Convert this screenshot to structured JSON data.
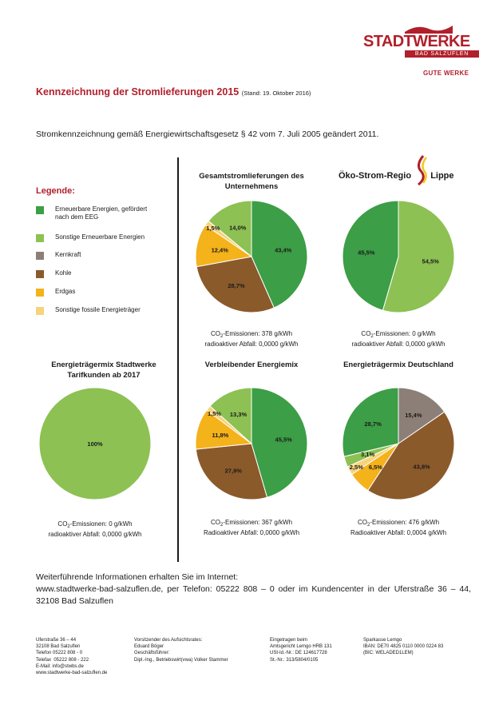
{
  "logo": {
    "name": "STADTWERKE",
    "sub": "BAD SALZUFLEN",
    "slogan": "GUTE WERKE"
  },
  "title": "Kennzeichnung der Stromlieferungen 2015",
  "title_stand": "(Stand: 19. Oktober 2016)",
  "intro": "Stromkennzeichnung gemäß Energiewirtschaftsgesetz § 42 vom 7. Juli 2005 geändert 2011.",
  "legend": {
    "title": "Legende:",
    "items": [
      {
        "label": "Erneuerbare Energien, gefördert nach dem EEG",
        "color": "#3c9e46"
      },
      {
        "label": "Sonstige Erneuerbare Energien",
        "color": "#8dc153"
      },
      {
        "label": "Kernkraft",
        "color": "#8b7f77"
      },
      {
        "label": "Kohle",
        "color": "#8b5a2b"
      },
      {
        "label": "Erdgas",
        "color": "#f4b21b"
      },
      {
        "label": "Sonstige fossile Energieträger",
        "color": "#f7d37b"
      }
    ]
  },
  "oeko_brand": {
    "text": "Öko-Strom-Regio",
    "accent": "Lippe"
  },
  "chart_data": [
    {
      "type": "pie",
      "title": "Gesamtstromlieferungen des Unternehmens",
      "categories": [
        "Erneuerbare Energien, gefördert nach dem EEG",
        "Kohle",
        "Erdgas",
        "Sonstige fossile Energieträger",
        "Sonstige Erneuerbare Energien"
      ],
      "values": [
        43.4,
        28.7,
        12.4,
        1.5,
        14.0
      ],
      "labels": [
        "43,4%",
        "28,7%",
        "12,4%",
        "1,5%",
        "14,0%"
      ],
      "colors": [
        "#3c9e46",
        "#8b5a2b",
        "#f4b21b",
        "#f7d37b",
        "#8dc153"
      ],
      "caption_co2": "378 g/kWh",
      "caption_waste": "0,0000 g/kWh"
    },
    {
      "type": "pie",
      "title": "",
      "categories": [
        "Sonstige Erneuerbare Energien",
        "Erneuerbare Energien, gefördert nach dem EEG"
      ],
      "values": [
        54.5,
        45.5
      ],
      "labels": [
        "54,5%",
        "45,5%"
      ],
      "colors": [
        "#8dc153",
        "#3c9e46"
      ],
      "caption_co2": "0 g/kWh",
      "caption_waste": "0,0000 g/kWh"
    },
    {
      "type": "pie",
      "title": "Energieträgermix Stadtwerke Tarifkunden ab 2017",
      "categories": [
        "Sonstige Erneuerbare Energien"
      ],
      "values": [
        100
      ],
      "labels": [
        "100%"
      ],
      "colors": [
        "#8dc153"
      ],
      "caption_co2": "0 g/kWh",
      "caption_waste": "0,0000 g/kWh"
    },
    {
      "type": "pie",
      "title": "Verbleibender Energiemix",
      "categories": [
        "Erneuerbare Energien, gefördert nach dem EEG",
        "Kohle",
        "Erdgas",
        "Sonstige fossile Energieträger",
        "Sonstige Erneuerbare Energien"
      ],
      "values": [
        45.5,
        27.9,
        11.8,
        1.5,
        13.3
      ],
      "labels": [
        "45,5%",
        "27,9%",
        "11,8%",
        "1,5%",
        "13,3%"
      ],
      "colors": [
        "#3c9e46",
        "#8b5a2b",
        "#f4b21b",
        "#f7d37b",
        "#8dc153"
      ],
      "caption_co2": "367 g/kWh",
      "caption_waste": "0,0000 g/kWh"
    },
    {
      "type": "pie",
      "title": "Energieträgermix Deutschland",
      "categories": [
        "Kernkraft",
        "Kohle",
        "Erdgas",
        "Sonstige fossile Energieträger",
        "Sonstige Erneuerbare Energien",
        "Erneuerbare Energien, gefördert nach dem EEG"
      ],
      "values": [
        15.4,
        43.8,
        6.5,
        2.5,
        3.1,
        28.7
      ],
      "labels": [
        "15,4%",
        "43,8%",
        "6,5%",
        "2,5%",
        "3,1%",
        "28,7%"
      ],
      "colors": [
        "#8b7f77",
        "#8b5a2b",
        "#f4b21b",
        "#f7d37b",
        "#8dc153",
        "#3c9e46"
      ],
      "caption_co2": "476 g/kWh",
      "caption_waste": "0,0004 g/kWh"
    }
  ],
  "captions": {
    "co2_prefix": "CO",
    "co2_sub": "2",
    "co2_suffix": "-Emissionen: ",
    "waste_lower": "radioaktiver Abfall: ",
    "waste_upper": "Radioaktiver Abfall: "
  },
  "info": {
    "line1": "Weiterführende Informationen erhalten Sie im Internet:",
    "line2": "www.stadtwerke-bad-salzuflen.de, per Telefon: 05222 808 – 0 oder im Kundencenter in der Uferstraße 36 – 44, 32108 Bad Salzuflen"
  },
  "footer": {
    "col1": "Uferstraße 36 – 44\n32108 Bad Salzuflen\nTelefon 05222 808 - 0\nTelefax  05222 808 - 222\nE-Mail: info@stwbs.de\nwww.stadtwerke-bad-salzuflen.de",
    "col2": "Vorsitzender des Aufsichtsrates:\nEduard Böger\nGeschäftsführer:\nDipl.-Ing., Betriebswirt(vwa) Volker Stammer",
    "col3": "Eingetragen beim\nAmtsgericht Lemgo HRB 131\nUSt-Id.-Nr.: DE 124617728\nSt.-Nr.: 313/5804/0105",
    "col4": "Sparkasse Lemgo\nIBAN: DE70 4825 0110 0000 0224 83\n(BIC: WELADED1LEM)"
  }
}
